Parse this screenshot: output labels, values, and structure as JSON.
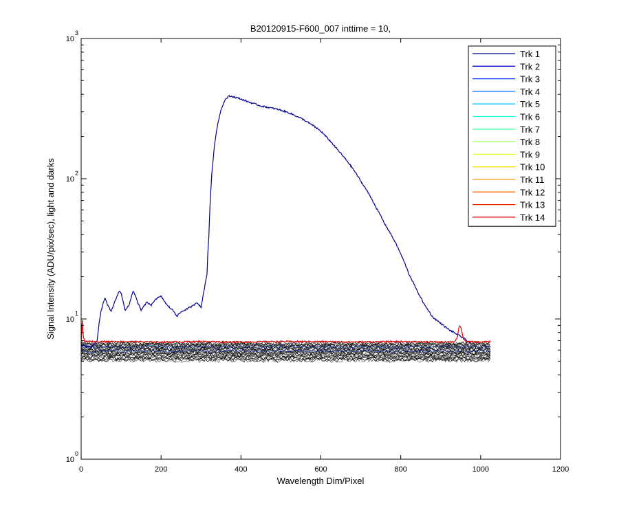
{
  "chart_data": {
    "type": "line",
    "title": "B20120915-F600_007 inttime = 10,",
    "xlabel": "Wavelength Dim/Pixel",
    "ylabel": "Signal Intensity (ADU/pix/sec), light and darks",
    "xlim": [
      0,
      1200
    ],
    "ylim": [
      1,
      1000
    ],
    "yscale": "log",
    "grid": false,
    "legend_position": "top-right",
    "x_ticks": [
      "0",
      "200",
      "400",
      "600",
      "800",
      "1000",
      "1200"
    ],
    "y_ticks": [
      {
        "base": "10",
        "exp": "0"
      },
      {
        "base": "10",
        "exp": "1"
      },
      {
        "base": "10",
        "exp": "2"
      },
      {
        "base": "10",
        "exp": "3"
      }
    ],
    "legend": [
      {
        "label": "Trk 1",
        "color": "#00008f"
      },
      {
        "label": "Trk 2",
        "color": "#0000cf"
      },
      {
        "label": "Trk 3",
        "color": "#0030ff"
      },
      {
        "label": "Trk 4",
        "color": "#0070ff"
      },
      {
        "label": "Trk 5",
        "color": "#00bfff"
      },
      {
        "label": "Trk 6",
        "color": "#10ffef"
      },
      {
        "label": "Trk 7",
        "color": "#50ffaf"
      },
      {
        "label": "Trk 8",
        "color": "#9fff60"
      },
      {
        "label": "Trk 9",
        "color": "#dfff20"
      },
      {
        "label": "Trk 10",
        "color": "#ffdf00"
      },
      {
        "label": "Trk 11",
        "color": "#ff9f00"
      },
      {
        "label": "Trk 12",
        "color": "#ff6000"
      },
      {
        "label": "Trk 13",
        "color": "#ff2000"
      },
      {
        "label": "Trk 14",
        "color": "#df0000"
      }
    ],
    "series": [
      {
        "name": "Trk 1",
        "color": "#00008f",
        "x": [
          0,
          25,
          40,
          50,
          60,
          65,
          75,
          85,
          95,
          100,
          110,
          120,
          130,
          135,
          140,
          150,
          155,
          165,
          175,
          185,
          200,
          215,
          230,
          240,
          250,
          265,
          280,
          290,
          300,
          305,
          310,
          315,
          320,
          330,
          340,
          350,
          360,
          370,
          380,
          400,
          420,
          450,
          480,
          500,
          520,
          550,
          580,
          600,
          620,
          640,
          660,
          680,
          700,
          720,
          740,
          760,
          780,
          800,
          820,
          840,
          860,
          880,
          900,
          920,
          940,
          960,
          975
        ],
        "y": [
          6.5,
          6.3,
          7.0,
          11.5,
          14.2,
          12.7,
          11.3,
          13.4,
          15.8,
          15.3,
          11.5,
          12.5,
          15.9,
          14.8,
          13.4,
          11.5,
          12.1,
          13.2,
          12.4,
          13.8,
          14.5,
          12.5,
          11.5,
          10.5,
          11.2,
          11.8,
          12.4,
          13.2,
          12.0,
          14.5,
          17.5,
          21.0,
          40.0,
          135.0,
          230.0,
          310.0,
          365.0,
          388.0,
          385.0,
          370.0,
          352.0,
          330.0,
          318.0,
          308.0,
          295.0,
          270.0,
          240.0,
          218.0,
          190.0,
          163.0,
          140.0,
          118.0,
          96.0,
          78.0,
          61.0,
          47.5,
          38.0,
          29.0,
          21.0,
          16.0,
          12.5,
          10.3,
          9.3,
          8.4,
          7.8,
          7.2,
          6.7
        ]
      },
      {
        "name": "Trk 14",
        "color": "#df0000",
        "x": [
          0,
          3,
          5,
          8,
          12,
          100,
          200,
          300,
          400,
          500,
          600,
          700,
          800,
          900,
          935,
          942,
          946,
          950,
          956,
          962,
          1000,
          1025
        ],
        "y": [
          6.8,
          9.7,
          7.5,
          7.0,
          6.9,
          6.9,
          6.85,
          6.9,
          6.85,
          6.9,
          6.9,
          6.85,
          6.9,
          6.85,
          6.9,
          7.4,
          8.8,
          8.9,
          7.3,
          6.9,
          6.85,
          6.9
        ]
      }
    ],
    "dark_band": {
      "x_range": [
        0,
        1025
      ],
      "y_range": [
        4.9,
        6.9
      ],
      "color": "#000000"
    }
  }
}
